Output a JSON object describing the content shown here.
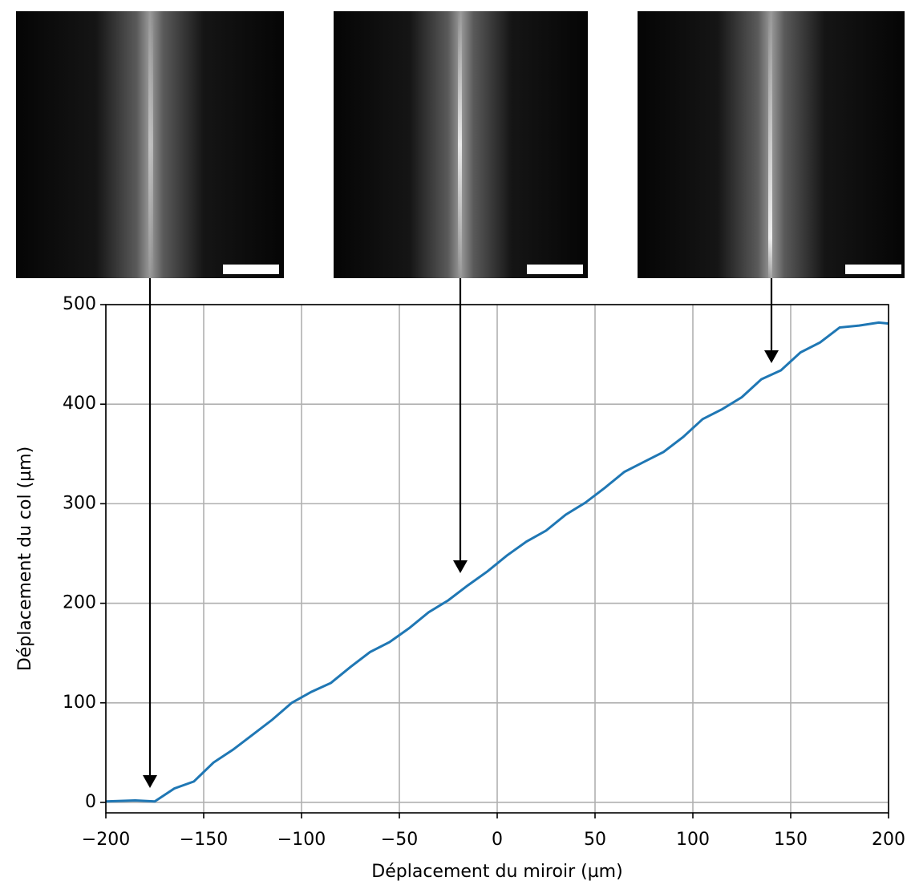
{
  "chart_data": {
    "type": "line",
    "xlabel": "Déplacement du miroir (µm)",
    "ylabel": "Déplacement du col (µm)",
    "x": [
      -200,
      -185,
      -175,
      -165,
      -155,
      -145,
      -135,
      -125,
      -115,
      -105,
      -95,
      -85,
      -75,
      -65,
      -55,
      -45,
      -35,
      -25,
      -15,
      -5,
      5,
      15,
      25,
      35,
      45,
      55,
      65,
      75,
      85,
      95,
      105,
      115,
      125,
      135,
      145,
      155,
      165,
      175,
      185,
      195,
      200
    ],
    "series": [
      {
        "color": "#1f77b4",
        "values": [
          1,
          2,
          1,
          14,
          21,
          40,
          53,
          68,
          83,
          100,
          111,
          120,
          136,
          151,
          161,
          175,
          191,
          203,
          218,
          232,
          248,
          262,
          273,
          289,
          301,
          316,
          332,
          342,
          352,
          367,
          385,
          395,
          407,
          425,
          434,
          452,
          462,
          477,
          479,
          482,
          481
        ]
      }
    ],
    "xlim": [
      -200,
      200
    ],
    "ylim": [
      -10.5,
      500
    ],
    "xticks": [
      {
        "value": -200,
        "label": "−200"
      },
      {
        "value": -150,
        "label": "−150"
      },
      {
        "value": -100,
        "label": "−100"
      },
      {
        "value": -50,
        "label": "−50"
      },
      0,
      50,
      100,
      150,
      200
    ],
    "yticks": [
      0,
      100,
      200,
      300,
      400,
      500
    ],
    "grid": true
  }
}
